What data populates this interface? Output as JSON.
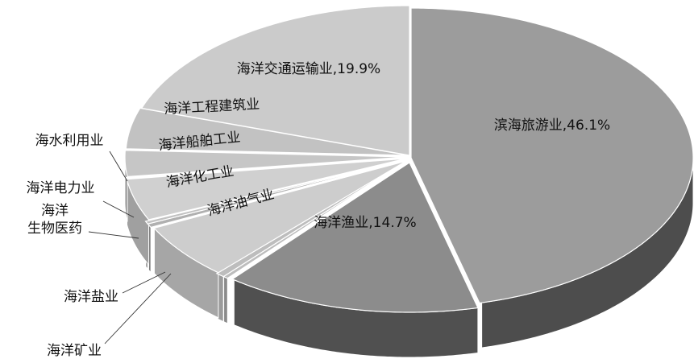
{
  "chart_data": {
    "type": "pie",
    "style": "3d-exploded-grayscale",
    "slices": [
      {
        "label": "滨海旅游业",
        "value": 46.1,
        "display": "滨海旅游业,46.1%",
        "color": "#9c9c9c",
        "side_color": "#4d4d4d"
      },
      {
        "label": "海洋渔业",
        "value": 14.7,
        "display": "海洋渔业,14.7%",
        "color": "#8c8c8c",
        "side_color": "#505050"
      },
      {
        "label": "海洋矿业",
        "value": 0.3,
        "display": "海洋矿业",
        "color": "#bdbdbd",
        "side_color": "#8a8a8a"
      },
      {
        "label": "海洋盐业",
        "value": 0.5,
        "display": "海洋盐业",
        "color": "#bdbdbd",
        "side_color": "#9a9a9a"
      },
      {
        "label": "海洋油气",
        "value": 6.0,
        "display": "海洋油气业",
        "color": "#cdcdcd",
        "side_color": "#a6a6a6"
      },
      {
        "label": "海洋生物医药",
        "value": 0.4,
        "display": "海洋\n生物医药",
        "color": "#b0b0b0",
        "side_color": "#7a7a7a"
      },
      {
        "label": "海洋电力业",
        "value": 0.3,
        "display": "海洋电力业",
        "color": "#c2c2c2",
        "side_color": "#8e8e8e"
      },
      {
        "label": "海洋化工业",
        "value": 4.5,
        "display": "海洋化工业",
        "color": "#d0d0d0",
        "side_color": "#a0a0a0"
      },
      {
        "label": "海水利用业",
        "value": 0.1,
        "display": "海水利用业",
        "color": "#c8c8c8",
        "side_color": "#888888"
      },
      {
        "label": "海洋船舶工业",
        "value": 2.8,
        "display": "海洋船舶工业",
        "color": "#c6c6c6",
        "side_color": "#909090"
      },
      {
        "label": "海洋工程建筑业",
        "value": 4.4,
        "display": "海洋工程建筑业",
        "color": "#c2c2c2",
        "side_color": "#8a8a8a"
      },
      {
        "label": "海洋交通运输业",
        "value": 19.9,
        "display": "海洋交通运输业,19.9%",
        "color": "#cbcbcb",
        "side_color": "#8a8a8a"
      }
    ]
  }
}
